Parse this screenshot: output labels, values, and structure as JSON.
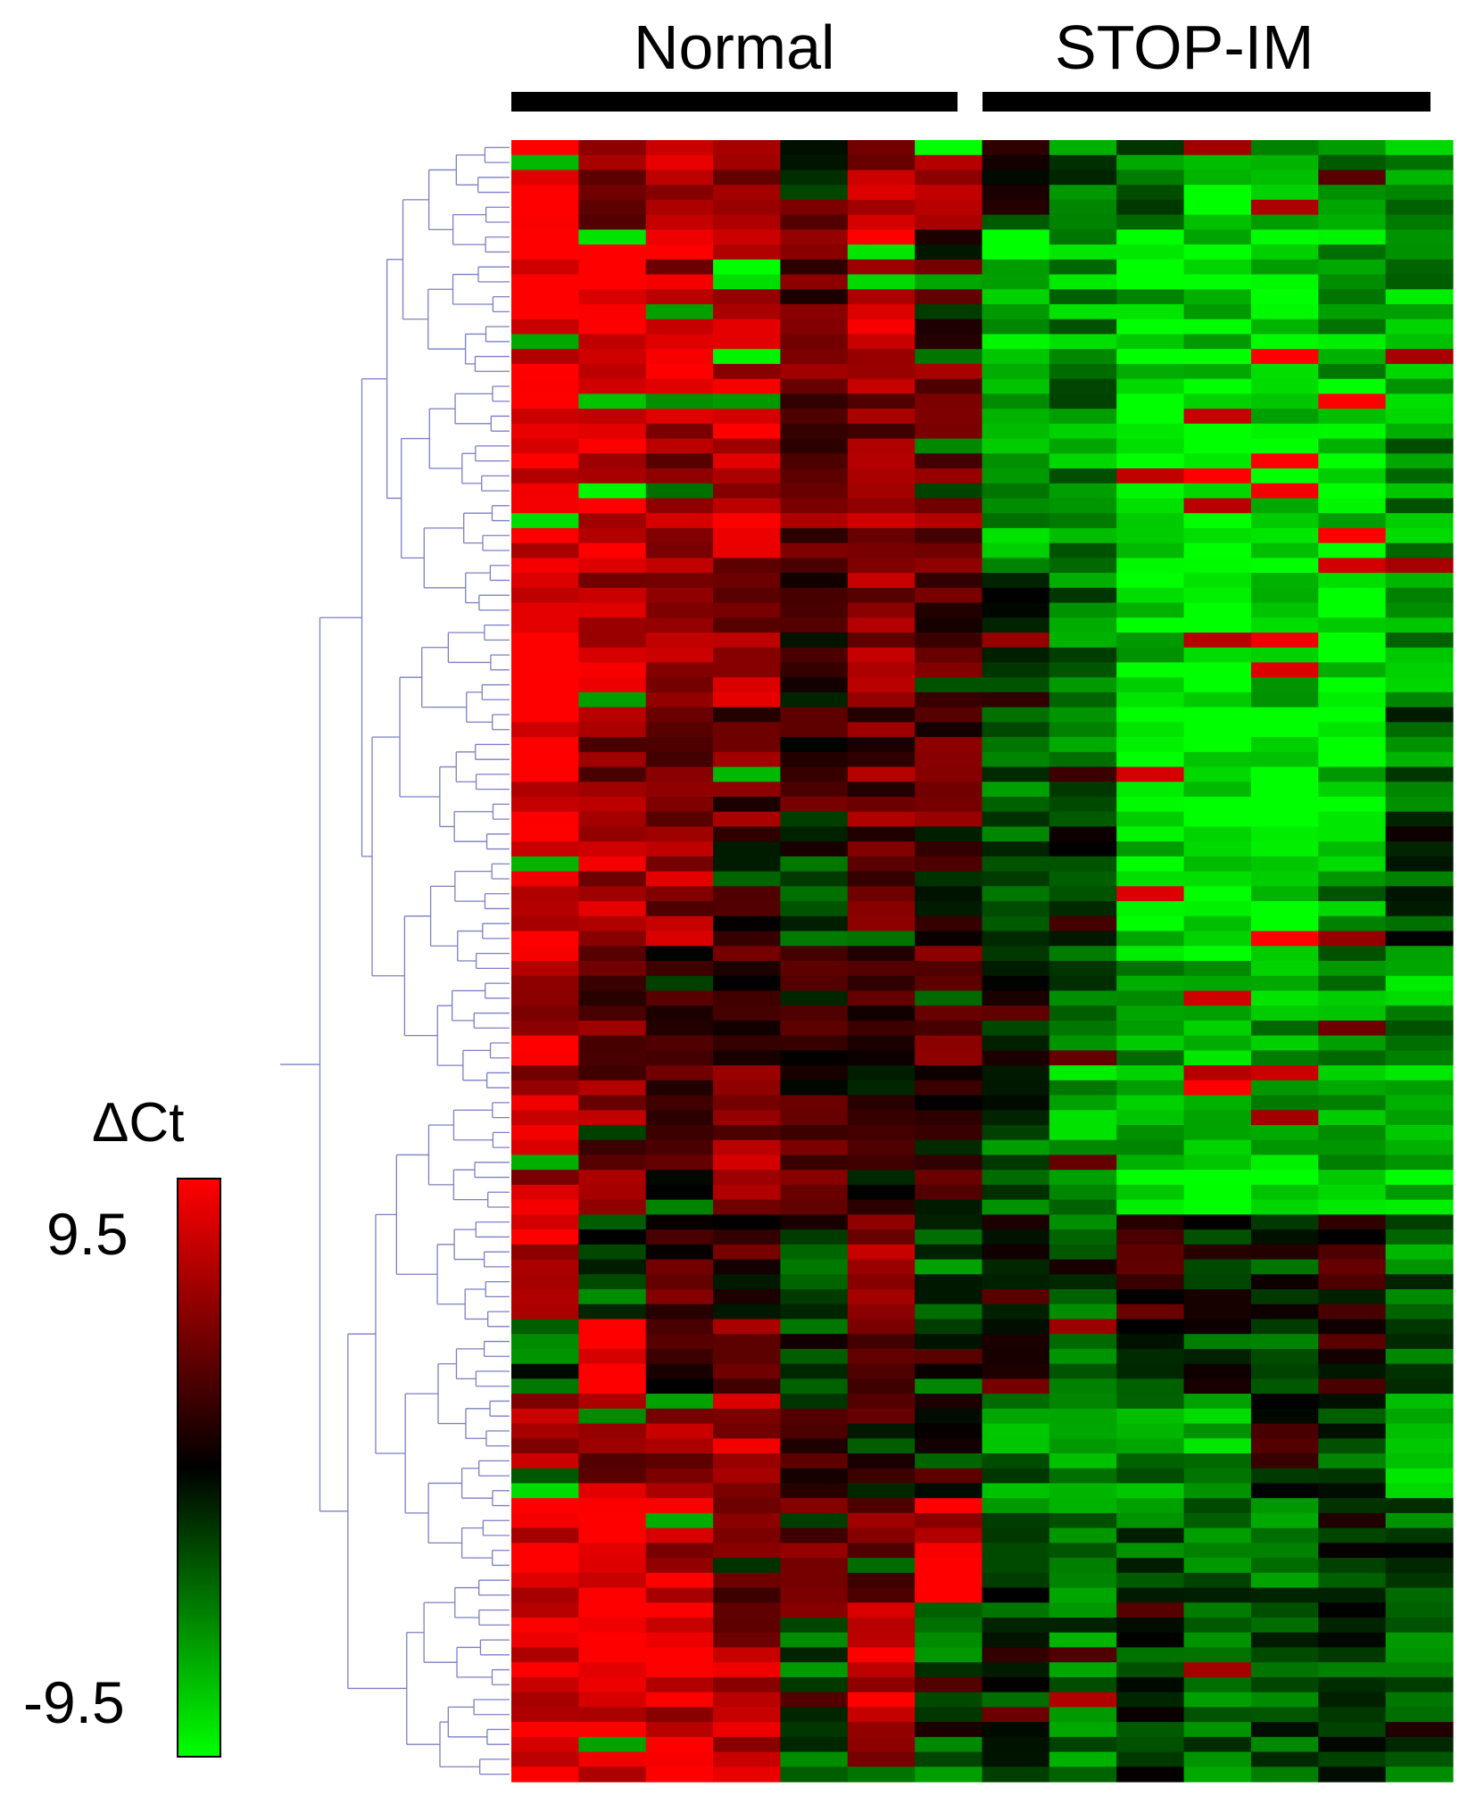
{
  "chart_data": {
    "type": "heatmap",
    "title": "",
    "groups": [
      {
        "label": "Normal",
        "columns": 7
      },
      {
        "label": "STOP-IM",
        "columns": 7
      }
    ],
    "n_rows": 110,
    "n_cols": 14,
    "row_dendrogram": true,
    "colorbar": {
      "title": "ΔCt",
      "max_label": "9.5",
      "min_label": "-9.5",
      "min": -9.5,
      "max": 9.5,
      "colors": {
        "high": "#ff0000",
        "mid": "#000000",
        "low": "#00ff00"
      }
    },
    "row_blocks": [
      {
        "rows": 6,
        "means": [
          9.0,
          5.0,
          6.5,
          4.0,
          2.0,
          6.0,
          7.5,
          -1.0,
          -4.0,
          -4.5,
          -7.5,
          -5.5,
          -4.0,
          -5.5
        ]
      },
      {
        "rows": 10,
        "means": [
          9.0,
          8.0,
          6.5,
          8.0,
          4.0,
          7.5,
          3.5,
          -8.0,
          -6.0,
          -7.5,
          -8.0,
          -7.5,
          -7.0,
          -6.0
        ]
      },
      {
        "rows": 12,
        "means": [
          9.0,
          8.5,
          6.0,
          7.0,
          4.0,
          5.0,
          4.0,
          -6.0,
          -5.0,
          -9.0,
          -9.0,
          -8.5,
          -8.5,
          -5.5
        ]
      },
      {
        "rows": 10,
        "means": [
          9.0,
          7.0,
          6.0,
          6.0,
          1.5,
          5.5,
          3.0,
          -3.0,
          -4.0,
          -8.0,
          -9.0,
          -8.0,
          -9.0,
          -5.0
        ]
      },
      {
        "rows": 8,
        "means": [
          8.5,
          4.5,
          5.5,
          4.0,
          2.0,
          4.0,
          3.5,
          -3.0,
          -4.0,
          -9.0,
          -9.5,
          -9.0,
          -8.5,
          -4.0
        ]
      },
      {
        "rows": 8,
        "means": [
          8.0,
          6.5,
          5.5,
          3.0,
          -2.0,
          4.0,
          1.0,
          -4.0,
          -2.0,
          -8.0,
          -9.0,
          -8.0,
          -6.0,
          -2.0
        ]
      },
      {
        "rows": 8,
        "means": [
          7.0,
          4.0,
          1.0,
          3.0,
          1.5,
          1.0,
          2.5,
          -2.0,
          -4.0,
          -6.0,
          -7.5,
          -6.0,
          -6.0,
          -6.0
        ]
      },
      {
        "rows": 10,
        "means": [
          7.0,
          4.5,
          2.0,
          5.5,
          2.5,
          1.0,
          1.0,
          -3.0,
          -6.0,
          -7.0,
          -8.0,
          -7.0,
          -6.0,
          -8.0
        ]
      },
      {
        "rows": 7,
        "means": [
          8.0,
          -3.0,
          2.0,
          1.5,
          -2.0,
          5.0,
          -3.0,
          1.0,
          -3.0,
          1.0,
          -1.5,
          -2.0,
          1.0,
          -4.0
        ]
      },
      {
        "rows": 5,
        "means": [
          -3.0,
          9.0,
          2.0,
          5.0,
          -2.0,
          4.0,
          -2.0,
          2.0,
          -3.0,
          -1.0,
          -2.0,
          -2.0,
          1.0,
          -3.0
        ]
      },
      {
        "rows": 7,
        "means": [
          6.0,
          6.0,
          5.0,
          7.0,
          1.0,
          1.0,
          1.0,
          -5.0,
          -6.0,
          -5.0,
          -6.0,
          1.0,
          -3.0,
          -6.0
        ]
      },
      {
        "rows": 7,
        "means": [
          9.0,
          9.0,
          7.0,
          3.0,
          3.0,
          4.0,
          8.0,
          -3.0,
          -4.0,
          -3.5,
          -3.0,
          -3.5,
          -1.0,
          -3.0
        ]
      },
      {
        "rows": 12,
        "means": [
          9.0,
          9.0,
          8.0,
          6.0,
          -4.0,
          7.0,
          -4.0,
          -1.5,
          -4.0,
          -2.0,
          -4.0,
          -3.0,
          -2.0,
          -4.0
        ]
      }
    ]
  }
}
